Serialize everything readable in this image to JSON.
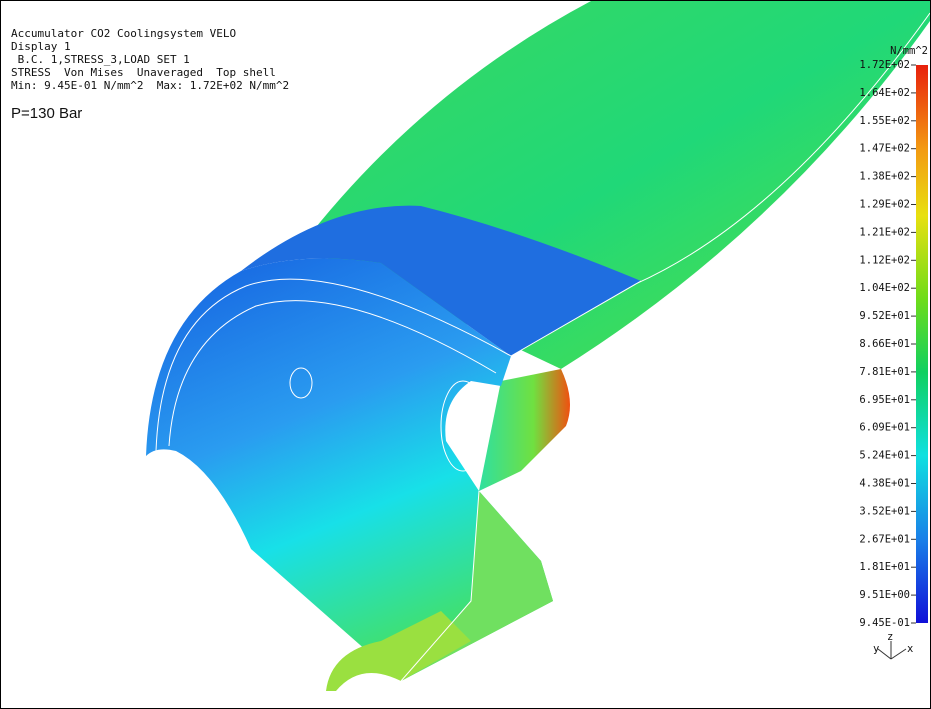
{
  "header": {
    "lines": [
      "Accumulator CO2 Coolingsystem VELO",
      "Display 1",
      " B.C. 1,STRESS_3,LOAD SET 1",
      "STRESS  Von Mises  Unaveraged  Top shell",
      "Min: 9.45E-01 N/mm^2  Max: 1.72E+02 N/mm^2"
    ],
    "pressure": "P=130 Bar"
  },
  "legend": {
    "unit": "N/mm^2",
    "labels": [
      "1.72E+02",
      "1.64E+02",
      "1.55E+02",
      "1.47E+02",
      "1.38E+02",
      "1.29E+02",
      "1.21E+02",
      "1.12E+02",
      "1.04E+02",
      "9.52E+01",
      "8.66E+01",
      "7.81E+01",
      "6.95E+01",
      "6.09E+01",
      "5.24E+01",
      "4.38E+01",
      "3.52E+01",
      "2.67E+01",
      "1.81E+01",
      "9.51E+00",
      "9.45E-01"
    ]
  },
  "triad": {
    "labels": [
      "y",
      "z",
      "x"
    ]
  }
}
